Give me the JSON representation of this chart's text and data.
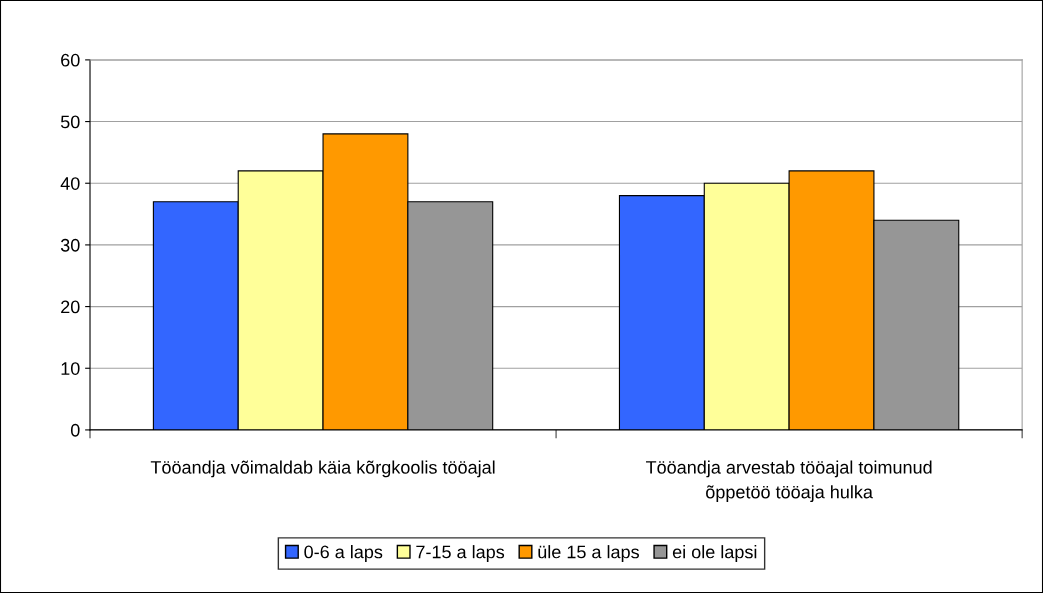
{
  "chart_data": {
    "type": "bar",
    "categories": [
      "Tööandja võimaldab käia kõrgkoolis tööajal",
      "Tööandja arvestab tööajal toimunud\nõppetöö tööaja hulka"
    ],
    "series": [
      {
        "name": "0-6 a laps",
        "color": "#3366ff",
        "values": [
          37,
          38
        ]
      },
      {
        "name": "7-15 a laps",
        "color": "#ffff99",
        "values": [
          42,
          40
        ]
      },
      {
        "name": "üle 15 a laps",
        "color": "#ff9900",
        "values": [
          48,
          42
        ]
      },
      {
        "name": "ei ole lapsi",
        "color": "#969696",
        "values": [
          37,
          34
        ]
      }
    ],
    "ylim": [
      0,
      60
    ],
    "yticks": [
      0,
      10,
      20,
      30,
      40,
      50,
      60
    ],
    "grid": "y",
    "legend": "bottom"
  }
}
